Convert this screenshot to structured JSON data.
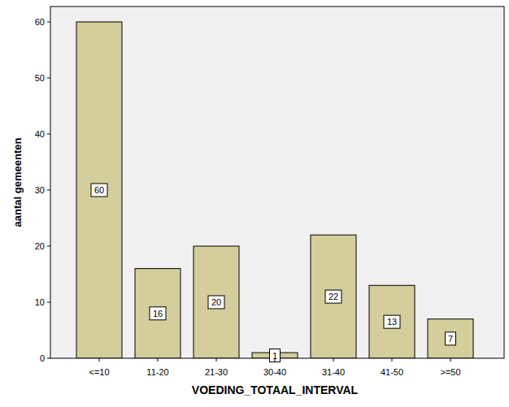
{
  "chart_data": {
    "type": "bar",
    "x_label": "VOEDING_TOTAAL_INTERVAL",
    "y_label": "aantal gemeenten",
    "categories": [
      "<=10",
      "11-20",
      "21-30",
      "30-40",
      "31-40",
      "41-50",
      ">=50"
    ],
    "values": [
      60,
      16,
      20,
      1,
      22,
      13,
      7
    ],
    "color": "#d3ce9b",
    "ylim": [
      0,
      62.75
    ],
    "yticks": [
      0,
      10,
      20,
      30,
      40,
      50,
      60
    ],
    "grid": false,
    "data_labels": true
  }
}
